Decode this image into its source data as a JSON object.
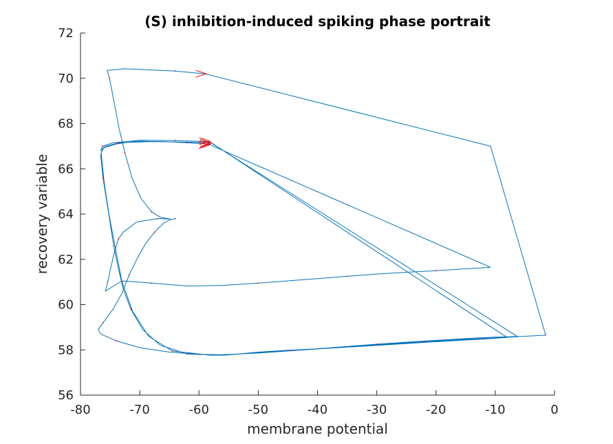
{
  "chart_data": {
    "type": "line",
    "title": "(S) inhibition-induced spiking phase portrait",
    "xlabel": "membrane potential",
    "ylabel": "recovery variable",
    "xlim": [
      -80,
      0
    ],
    "ylim": [
      56,
      72
    ],
    "xticks": [
      -80,
      -70,
      -60,
      -50,
      -40,
      -30,
      -20,
      -10,
      0
    ],
    "yticks": [
      56,
      58,
      60,
      62,
      64,
      66,
      68,
      70,
      72
    ],
    "grid": false,
    "legend": "none",
    "colors": {
      "trajectory": "#0072bd",
      "markers": "#ff0000",
      "axes": "#262626"
    },
    "series": [
      {
        "points": [
          [
            -64.0,
            63.8
          ],
          [
            -64.8,
            63.75
          ],
          [
            -66.0,
            63.6
          ],
          [
            -67.5,
            63.2
          ],
          [
            -69.0,
            62.7
          ],
          [
            -70.5,
            62.0
          ],
          [
            -71.8,
            61.3
          ],
          [
            -73.0,
            60.5
          ],
          [
            -74.5,
            59.8
          ],
          [
            -76.2,
            59.2
          ],
          [
            -77.0,
            58.9
          ],
          [
            -76.6,
            58.7
          ],
          [
            -74.0,
            58.4
          ],
          [
            -70.0,
            58.1
          ],
          [
            -65.0,
            57.9
          ],
          [
            -60.0,
            57.8
          ],
          [
            -55.0,
            57.78
          ],
          [
            -50.0,
            57.9
          ],
          [
            -45.0,
            57.98
          ],
          [
            -40.0,
            58.05
          ],
          [
            -35.0,
            58.15
          ],
          [
            -30.0,
            58.25
          ],
          [
            -25.0,
            58.34
          ],
          [
            -20.0,
            58.42
          ],
          [
            -15.0,
            58.5
          ],
          [
            -10.0,
            58.56
          ],
          [
            -5.0,
            58.6
          ],
          [
            -1.5,
            58.65
          ],
          [
            -10.8,
            67.0
          ],
          [
            -59.0,
            70.2
          ],
          [
            -64.0,
            70.32
          ],
          [
            -72.5,
            70.42
          ],
          [
            -75.5,
            70.35
          ],
          [
            -75.1,
            70.0
          ],
          [
            -74.3,
            68.9
          ],
          [
            -73.5,
            67.8
          ],
          [
            -72.5,
            66.7
          ],
          [
            -71.3,
            65.6
          ],
          [
            -69.8,
            64.7
          ],
          [
            -68.0,
            64.1
          ],
          [
            -66.5,
            63.85
          ],
          [
            -64.8,
            63.78
          ],
          [
            -67.0,
            63.8
          ],
          [
            -70.5,
            63.65
          ],
          [
            -72.8,
            63.2
          ],
          [
            -73.6,
            62.9
          ],
          [
            -74.3,
            62.3
          ],
          [
            -75.0,
            61.5
          ],
          [
            -75.4,
            61.0
          ],
          [
            -75.8,
            60.6
          ],
          [
            -73.0,
            61.05
          ],
          [
            -68.0,
            60.95
          ],
          [
            -62.0,
            60.82
          ],
          [
            -56.0,
            60.85
          ],
          [
            -50.0,
            60.95
          ],
          [
            -45.0,
            61.05
          ],
          [
            -40.0,
            61.15
          ],
          [
            -35.0,
            61.25
          ],
          [
            -30.0,
            61.35
          ],
          [
            -25.0,
            61.43
          ],
          [
            -20.0,
            61.5
          ],
          [
            -10.8,
            61.65
          ],
          [
            -58.5,
            67.1
          ],
          [
            -62.0,
            67.15
          ],
          [
            -66.0,
            67.2
          ],
          [
            -70.5,
            67.22
          ],
          [
            -74.0,
            67.1
          ],
          [
            -76.3,
            66.9
          ],
          [
            -76.6,
            66.6
          ],
          [
            -76.2,
            65.6
          ],
          [
            -75.6,
            64.6
          ],
          [
            -75.0,
            63.6
          ],
          [
            -74.4,
            62.6
          ],
          [
            -73.6,
            61.6
          ],
          [
            -72.8,
            60.7
          ],
          [
            -71.5,
            59.8
          ],
          [
            -69.5,
            58.9
          ],
          [
            -66.5,
            58.2
          ],
          [
            -62.0,
            57.82
          ],
          [
            -56.0,
            57.76
          ],
          [
            -50.0,
            57.88
          ],
          [
            -44.0,
            57.98
          ],
          [
            -38.0,
            58.08
          ],
          [
            -30.0,
            58.22
          ],
          [
            -22.0,
            58.36
          ],
          [
            -14.0,
            58.48
          ],
          [
            -6.2,
            58.58
          ],
          [
            -58.0,
            67.15
          ],
          [
            -62.0,
            67.18
          ],
          [
            -68.0,
            67.2
          ],
          [
            -73.5,
            67.15
          ],
          [
            -76.0,
            66.98
          ],
          [
            -76.5,
            66.7
          ],
          [
            -76.0,
            65.4
          ],
          [
            -75.2,
            64.0
          ],
          [
            -74.2,
            62.6
          ],
          [
            -73.0,
            61.0
          ],
          [
            -71.2,
            59.7
          ],
          [
            -68.5,
            58.6
          ],
          [
            -64.5,
            57.95
          ],
          [
            -58.0,
            57.76
          ],
          [
            -50.0,
            57.86
          ],
          [
            -40.0,
            58.04
          ],
          [
            -30.0,
            58.2
          ],
          [
            -20.0,
            58.36
          ],
          [
            -12.0,
            58.48
          ],
          [
            -8.0,
            58.55
          ],
          [
            -58.2,
            67.2
          ],
          [
            -64.0,
            67.25
          ],
          [
            -70.0,
            67.26
          ],
          [
            -74.5,
            67.15
          ],
          [
            -76.3,
            67.0
          ],
          [
            -76.6,
            66.8
          ]
        ]
      }
    ],
    "arrows": [
      [
        -58.8,
        70.2
      ],
      [
        -58.2,
        67.22
      ],
      [
        -58.0,
        67.15
      ],
      [
        -58.1,
        67.1
      ],
      [
        -58.3,
        67.05
      ]
    ]
  }
}
